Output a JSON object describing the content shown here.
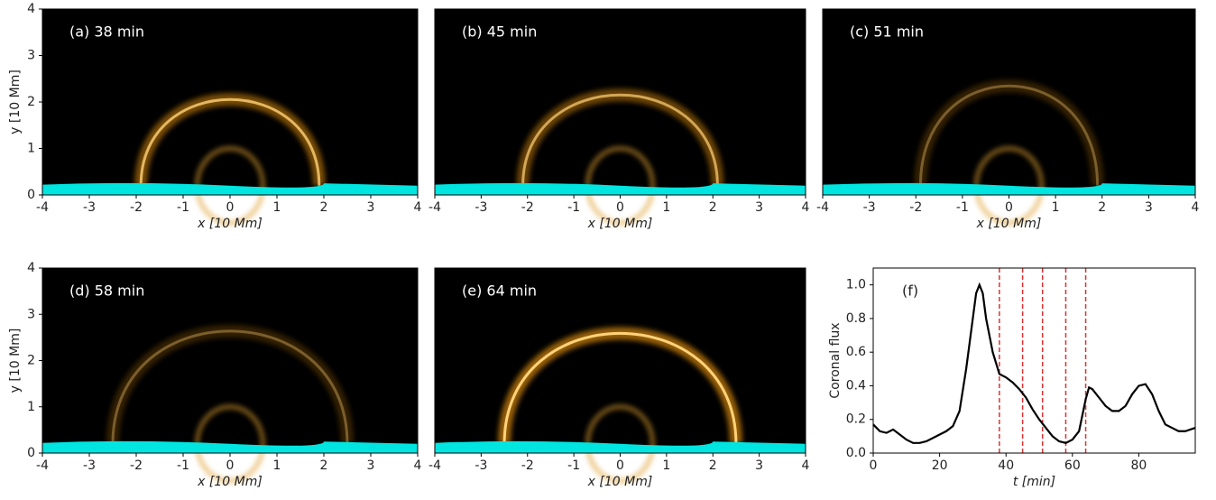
{
  "chart_data": [
    {
      "type": "image",
      "annotation": "(a) 38 min",
      "xlabel": "x [10 Mm]",
      "ylabel": "y [10 Mm]",
      "xlim": [
        -4,
        4
      ],
      "ylim": [
        0,
        4
      ],
      "xticks": [
        -4,
        -3,
        -2,
        -1,
        0,
        1,
        2,
        3,
        4
      ],
      "yticks": [
        0,
        1,
        2,
        3,
        4
      ]
    },
    {
      "type": "image",
      "annotation": "(b) 45 min",
      "xlabel": "x [10 Mm]",
      "xlim": [
        -4,
        4
      ],
      "ylim": [
        0,
        4
      ],
      "xticks": [
        -4,
        -3,
        -2,
        -1,
        0,
        1,
        2,
        3,
        4
      ]
    },
    {
      "type": "image",
      "annotation": "(c) 51 min",
      "xlabel": "x [10 Mm]",
      "xlim": [
        -4,
        4
      ],
      "ylim": [
        0,
        4
      ],
      "xticks": [
        -4,
        -3,
        -2,
        -1,
        0,
        1,
        2,
        3,
        4
      ]
    },
    {
      "type": "image",
      "annotation": "(d) 58 min",
      "xlabel": "x [10 Mm]",
      "ylabel": "y [10 Mm]",
      "xlim": [
        -4,
        4
      ],
      "ylim": [
        0,
        4
      ],
      "xticks": [
        -4,
        -3,
        -2,
        -1,
        0,
        1,
        2,
        3,
        4
      ],
      "yticks": [
        0,
        1,
        2,
        3,
        4
      ]
    },
    {
      "type": "image",
      "annotation": "(e) 64 min",
      "xlabel": "x [10 Mm]",
      "xlim": [
        -4,
        4
      ],
      "ylim": [
        0,
        4
      ],
      "xticks": [
        -4,
        -3,
        -2,
        -1,
        0,
        1,
        2,
        3,
        4
      ]
    },
    {
      "type": "line",
      "annotation": "(f)",
      "xlabel": "t [min]",
      "ylabel": "Coronal flux",
      "xlim": [
        0,
        97
      ],
      "ylim": [
        0,
        1.1
      ],
      "xticks": [
        0,
        20,
        40,
        60,
        80
      ],
      "yticks": [
        {
          "value": 0,
          "label": "0.0"
        },
        0.2,
        0.4,
        0.6,
        0.8,
        {
          "value": 1,
          "label": "1.0"
        }
      ],
      "color": "#000000",
      "vline_color": "#e03030",
      "vlines": [
        38,
        45,
        51,
        58,
        64
      ],
      "x": [
        0,
        2,
        4,
        6,
        8,
        10,
        12,
        14,
        16,
        18,
        20,
        22,
        24,
        26,
        28,
        30,
        31,
        32,
        33,
        34,
        36,
        38,
        40,
        42,
        44,
        46,
        48,
        50,
        52,
        54,
        56,
        58,
        60,
        62,
        64,
        65,
        66,
        68,
        70,
        72,
        74,
        76,
        78,
        80,
        82,
        84,
        86,
        88,
        90,
        92,
        94,
        97
      ],
      "values": [
        0.17,
        0.13,
        0.12,
        0.14,
        0.11,
        0.08,
        0.06,
        0.06,
        0.07,
        0.09,
        0.11,
        0.13,
        0.16,
        0.25,
        0.5,
        0.8,
        0.95,
        1.0,
        0.95,
        0.8,
        0.6,
        0.47,
        0.45,
        0.42,
        0.38,
        0.33,
        0.26,
        0.2,
        0.15,
        0.1,
        0.07,
        0.06,
        0.08,
        0.13,
        0.32,
        0.39,
        0.38,
        0.33,
        0.28,
        0.25,
        0.25,
        0.28,
        0.35,
        0.4,
        0.41,
        0.35,
        0.25,
        0.17,
        0.15,
        0.13,
        0.13,
        0.15
      ]
    }
  ]
}
